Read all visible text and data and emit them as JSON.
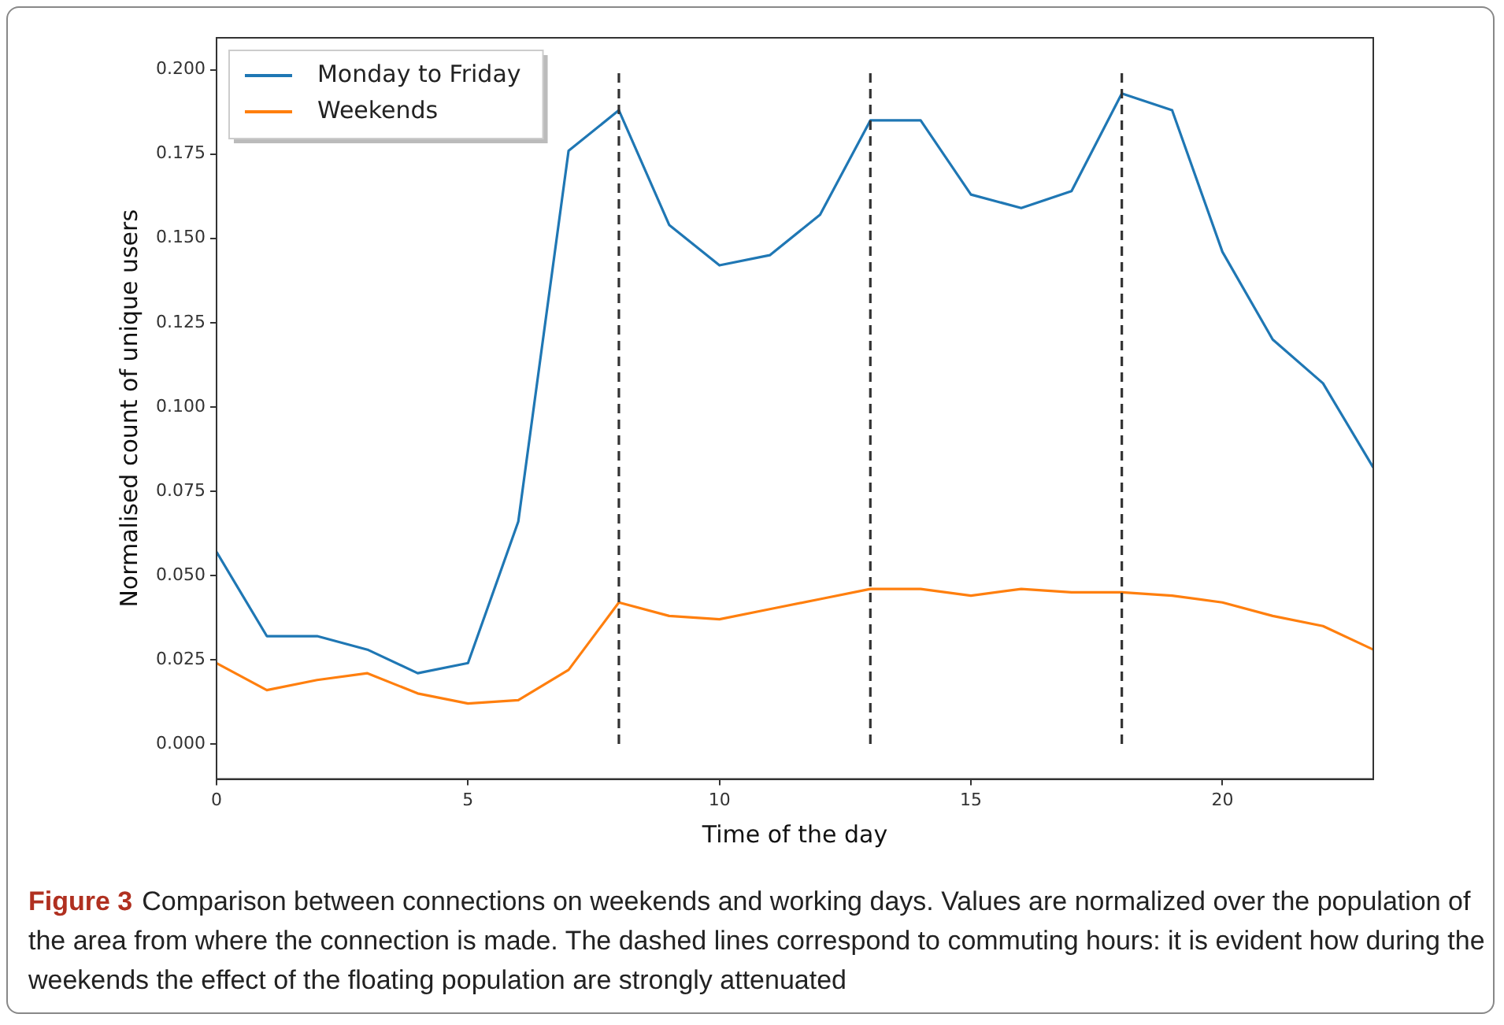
{
  "chart_data": {
    "type": "line",
    "xlabel": "Time of the day",
    "ylabel": "Normalised count of unique users",
    "x": [
      0,
      1,
      2,
      3,
      4,
      5,
      6,
      7,
      8,
      9,
      10,
      11,
      12,
      13,
      14,
      15,
      16,
      17,
      18,
      19,
      20,
      21,
      22,
      23
    ],
    "series": [
      {
        "name": "Monday to Friday",
        "color": "#1f77b4",
        "values": [
          0.057,
          0.032,
          0.032,
          0.028,
          0.021,
          0.024,
          0.066,
          0.176,
          0.188,
          0.154,
          0.142,
          0.145,
          0.157,
          0.185,
          0.185,
          0.163,
          0.159,
          0.164,
          0.193,
          0.188,
          0.146,
          0.12,
          0.107,
          0.082
        ]
      },
      {
        "name": "Weekends",
        "color": "#ff7f0e",
        "values": [
          0.024,
          0.016,
          0.019,
          0.021,
          0.015,
          0.012,
          0.013,
          0.022,
          0.042,
          0.038,
          0.037,
          0.04,
          0.043,
          0.046,
          0.046,
          0.044,
          0.046,
          0.045,
          0.045,
          0.044,
          0.042,
          0.038,
          0.035,
          0.028
        ]
      }
    ],
    "xlim": [
      0,
      23
    ],
    "xticks": [
      0,
      5,
      10,
      15,
      20
    ],
    "ylim": [
      -0.0104,
      0.2095
    ],
    "yticks": [
      {
        "value": 0,
        "label": "0.000"
      },
      {
        "value": 0.025,
        "label": "0.025"
      },
      {
        "value": 0.05,
        "label": "0.050"
      },
      {
        "value": 0.075,
        "label": "0.075"
      },
      {
        "value": 0.1,
        "label": "0.100"
      },
      {
        "value": 0.125,
        "label": "0.125"
      },
      {
        "value": 0.15,
        "label": "0.150"
      },
      {
        "value": 0.175,
        "label": "0.175"
      },
      {
        "value": 0.2,
        "label": "0.200"
      }
    ],
    "ref_lines": [
      {
        "axis": "x",
        "value": 8,
        "color": "#333333",
        "line_style": "dashed"
      },
      {
        "axis": "x",
        "value": 13,
        "color": "#333333",
        "line_style": "dashed"
      },
      {
        "axis": "x",
        "value": 18,
        "color": "#333333",
        "line_style": "dashed"
      }
    ],
    "grid": false,
    "legend": "top left",
    "marker": "none",
    "line_style": "solid",
    "annotations": [
      "Figure 3",
      "Comparison between connections on weekends and working days. Values are normalized over the population of the area from where the connection is made. The dashed lines correspond to commuting hours: it is evident how during the weekends the effect of the floating population are strongly attenuated"
    ]
  }
}
